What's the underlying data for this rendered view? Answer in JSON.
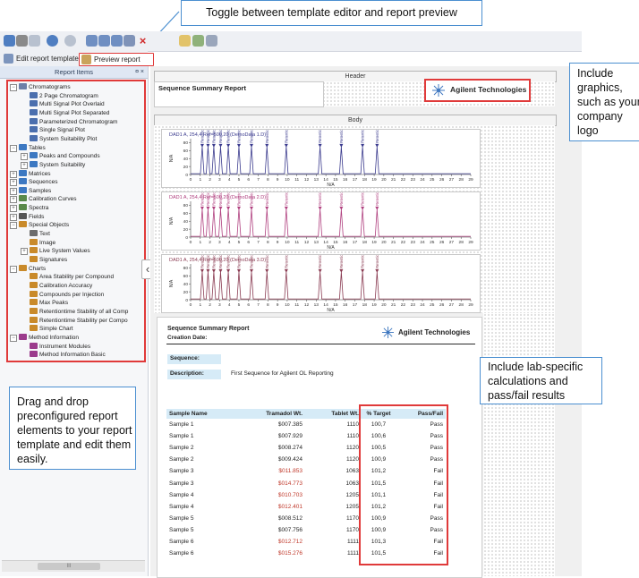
{
  "callouts": {
    "toggle": "Toggle between template editor and report preview",
    "graphics": "Include graphics, such as your company logo",
    "drag": "Drag and drop preconfigured report elements to your report template and edit them easily.",
    "lab": "Include lab-specific calculations and pass/fail results"
  },
  "tabs": {
    "edit": "Edit report template",
    "preview": "Preview report"
  },
  "panel": {
    "title": "Report Items",
    "pin": "¤ ×",
    "scrollbar_thumb": "III"
  },
  "tree": [
    {
      "label": "Chromatograms",
      "level": 0,
      "expander": "−",
      "color": "#6d7fa8"
    },
    {
      "label": "2 Page Chromatogram",
      "level": 1,
      "color": "#4b6fae"
    },
    {
      "label": "Multi Signal Plot Overlaid",
      "level": 1,
      "color": "#4b6fae"
    },
    {
      "label": "Multi Signal Plot Separated",
      "level": 1,
      "color": "#4b6fae"
    },
    {
      "label": "Parameterized Chromatogram",
      "level": 1,
      "color": "#4b6fae"
    },
    {
      "label": "Single Signal Plot",
      "level": 1,
      "color": "#4b6fae"
    },
    {
      "label": "System Suitability Plot",
      "level": 1,
      "color": "#4b6fae"
    },
    {
      "label": "Tables",
      "level": 0,
      "expander": "−",
      "color": "#3c78c2"
    },
    {
      "label": "Peaks and Compounds",
      "level": 1,
      "expander": "+",
      "color": "#3c78c2"
    },
    {
      "label": "System Suitability",
      "level": 1,
      "expander": "+",
      "color": "#3c78c2"
    },
    {
      "label": "Matrices",
      "level": 0,
      "expander": "+",
      "color": "#3c78c2"
    },
    {
      "label": "Sequences",
      "level": 0,
      "expander": "+",
      "color": "#3c78c2"
    },
    {
      "label": "Samples",
      "level": 0,
      "expander": "+",
      "color": "#3c78c2"
    },
    {
      "label": "Calibration Curves",
      "level": 0,
      "expander": "+",
      "color": "#5a8a4a"
    },
    {
      "label": "Spectra",
      "level": 0,
      "expander": "+",
      "color": "#5a8a4a"
    },
    {
      "label": "Fields",
      "level": 0,
      "expander": "+",
      "color": "#555555"
    },
    {
      "label": "Special Objects",
      "level": 0,
      "expander": "−",
      "color": "#c98a2a"
    },
    {
      "label": "Text",
      "level": 1,
      "color": "#6d6d6d"
    },
    {
      "label": "Image",
      "level": 1,
      "color": "#c98a2a"
    },
    {
      "label": "Live System Values",
      "level": 1,
      "expander": "+",
      "color": "#c98a2a"
    },
    {
      "label": "Signatures",
      "level": 1,
      "color": "#c98a2a"
    },
    {
      "label": "Charts",
      "level": 0,
      "expander": "−",
      "color": "#c98a2a"
    },
    {
      "label": "Area Stability per Compound",
      "level": 1,
      "color": "#c98a2a"
    },
    {
      "label": "Calibration Accuracy",
      "level": 1,
      "color": "#c98a2a"
    },
    {
      "label": "Compounds per Injection",
      "level": 1,
      "color": "#c98a2a"
    },
    {
      "label": "Max Peaks",
      "level": 1,
      "color": "#c98a2a"
    },
    {
      "label": "Retentiontime Stability of all Comp",
      "level": 1,
      "color": "#c98a2a"
    },
    {
      "label": "Retentiontime Stability per Compo",
      "level": 1,
      "color": "#c98a2a"
    },
    {
      "label": "Simple Chart",
      "level": 1,
      "color": "#c98a2a"
    },
    {
      "label": "Method Information",
      "level": 0,
      "expander": "−",
      "color": "#9b3b8c"
    },
    {
      "label": "Instrument Modules",
      "level": 1,
      "color": "#9b3b8c"
    },
    {
      "label": "Method Information Basic",
      "level": 1,
      "color": "#9b3b8c"
    }
  ],
  "report": {
    "header_band": "Header",
    "body_band": "Body",
    "title": "Sequence Summary Report",
    "company": "Agilent Technologies",
    "creation_date_label": "Creation Date:",
    "sequence_label": "Sequence:",
    "description_label": "Description:",
    "description_value": "First Sequence for Agilent OL Reporting"
  },
  "chart_data": [
    {
      "type": "line",
      "title": "DAD1 A, 254,4 Ref=500,20 (DemoData 1.D)",
      "ylabel": "N/A",
      "xlabel": "N/A",
      "x": [
        0,
        1,
        2,
        3,
        4,
        5,
        6,
        7,
        8,
        9,
        10,
        11,
        12,
        13,
        14,
        15,
        16,
        17,
        18,
        19,
        20,
        21,
        22,
        23,
        24,
        25,
        26,
        27,
        28,
        29
      ],
      "yticks": [
        "0",
        "20",
        "40",
        "60",
        "80"
      ],
      "ylim": [
        0,
        90
      ],
      "peaks_x": [
        1.2,
        1.8,
        2.4,
        3.1,
        3.9,
        5.0,
        6.3,
        7.9,
        9.9,
        13.4,
        15.6,
        17.8,
        19.3
      ],
      "peak_label": "Retention Time",
      "color": "#3b3b8e"
    },
    {
      "type": "line",
      "title": "DAD1 A, 254,4 Ref=500,20 (DemoData 2.D)",
      "ylabel": "N/A",
      "xlabel": "N/A",
      "x": [
        0,
        1,
        2,
        3,
        4,
        5,
        6,
        7,
        8,
        9,
        10,
        11,
        12,
        13,
        14,
        15,
        16,
        17,
        18,
        19,
        20,
        21,
        22,
        23,
        24,
        25,
        26,
        27,
        28,
        29
      ],
      "yticks": [
        "0",
        "20",
        "40",
        "60",
        "80"
      ],
      "ylim": [
        0,
        90
      ],
      "peaks_x": [
        1.2,
        1.8,
        2.4,
        3.1,
        3.9,
        5.0,
        6.3,
        7.9,
        9.9,
        13.4,
        15.6,
        17.8,
        19.3
      ],
      "peak_label": "Retention Time",
      "color": "#b0407f"
    },
    {
      "type": "line",
      "title": "DAD1 A, 254,4 Ref=500,20 (DemoData 3.D)",
      "ylabel": "N/A",
      "xlabel": "N/A",
      "x": [
        0,
        1,
        2,
        3,
        4,
        5,
        6,
        7,
        8,
        9,
        10,
        11,
        12,
        13,
        14,
        15,
        16,
        17,
        18,
        19,
        20,
        21,
        22,
        23,
        24,
        25,
        26,
        27,
        28,
        29
      ],
      "yticks": [
        "0",
        "20",
        "40",
        "60",
        "80"
      ],
      "ylim": [
        0,
        90
      ],
      "peaks_x": [
        1.2,
        1.8,
        2.4,
        3.1,
        3.9,
        5.0,
        6.3,
        7.9,
        9.9,
        13.4,
        15.6,
        17.8,
        19.3
      ],
      "peak_label": "Retention Time",
      "color": "#8a3b52"
    }
  ],
  "table": {
    "headers": [
      "Sample Name",
      "Tramadol Wt.",
      "Tablet Wt.",
      "% Target",
      "Pass/Fail"
    ],
    "rows": [
      {
        "name": "Sample 1",
        "tram": "$007.385",
        "tablet": "1110",
        "target": "100,7",
        "pf": "Pass",
        "red": false
      },
      {
        "name": "Sample 1",
        "tram": "$007.929",
        "tablet": "1110",
        "target": "100,6",
        "pf": "Pass",
        "red": false
      },
      {
        "name": "Sample 2",
        "tram": "$008.274",
        "tablet": "1120",
        "target": "100,5",
        "pf": "Pass",
        "red": false
      },
      {
        "name": "Sample 2",
        "tram": "$009.424",
        "tablet": "1120",
        "target": "100,9",
        "pf": "Pass",
        "red": false
      },
      {
        "name": "Sample 3",
        "tram": "$011.853",
        "tablet": "1063",
        "target": "101,2",
        "pf": "Fail",
        "red": true
      },
      {
        "name": "Sample 3",
        "tram": "$014.773",
        "tablet": "1063",
        "target": "101,5",
        "pf": "Fail",
        "red": true
      },
      {
        "name": "Sample 4",
        "tram": "$010.703",
        "tablet": "1205",
        "target": "101,1",
        "pf": "Fail",
        "red": true
      },
      {
        "name": "Sample 4",
        "tram": "$012.401",
        "tablet": "1205",
        "target": "101,2",
        "pf": "Fail",
        "red": true
      },
      {
        "name": "Sample 5",
        "tram": "$008.512",
        "tablet": "1170",
        "target": "100,9",
        "pf": "Pass",
        "red": false
      },
      {
        "name": "Sample 5",
        "tram": "$007.756",
        "tablet": "1170",
        "target": "100,9",
        "pf": "Pass",
        "red": false
      },
      {
        "name": "Sample 6",
        "tram": "$012.712",
        "tablet": "1111",
        "target": "101,3",
        "pf": "Fail",
        "red": true
      },
      {
        "name": "Sample 6",
        "tram": "$015.276",
        "tablet": "1111",
        "target": "101,5",
        "pf": "Fail",
        "red": true
      }
    ]
  },
  "colors": {
    "accent_red": "#e03a3a",
    "callout_border": "#4b8fd0",
    "pane_header": "#dfe7f3"
  }
}
